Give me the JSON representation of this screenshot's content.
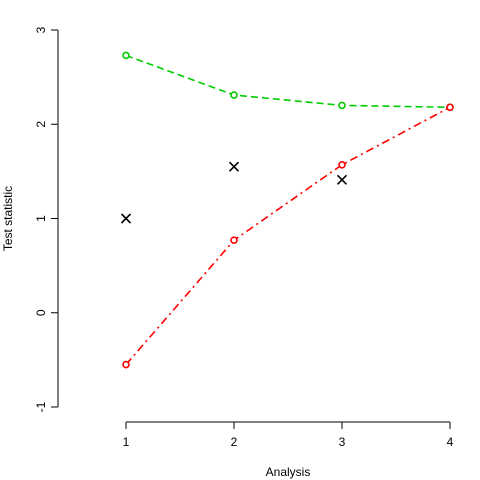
{
  "chart_data": {
    "type": "line",
    "title": "",
    "xlabel": "Analysis",
    "ylabel": "Test statistic",
    "x": [
      1,
      2,
      3,
      4
    ],
    "xlim": [
      1,
      4
    ],
    "ylim": [
      -1,
      3
    ],
    "xticks": [
      "1",
      "2",
      "3",
      "4"
    ],
    "yticks": [
      "-1",
      "0",
      "1",
      "2",
      "3"
    ],
    "grid": false,
    "series": [
      {
        "kind": "upper-bound",
        "values": [
          2.73,
          2.31,
          2.2,
          2.18
        ],
        "color": "#00cd00",
        "linestyle": "dashed",
        "marker": "circle"
      },
      {
        "kind": "lower-bound",
        "values": [
          -0.55,
          0.77,
          1.57,
          2.18
        ],
        "color": "#ff0000",
        "linestyle": "dashdot",
        "marker": "circle"
      },
      {
        "kind": "observed",
        "values": [
          1.0,
          1.55,
          1.41,
          null
        ],
        "color": "#000000",
        "linestyle": "none",
        "marker": "cross"
      }
    ]
  }
}
